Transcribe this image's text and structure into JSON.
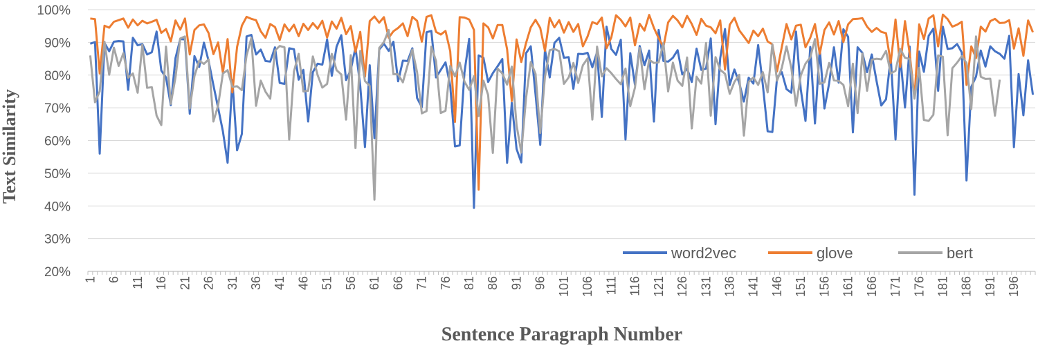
{
  "chart_data": {
    "type": "line",
    "xlabel": "Sentence Paragraph Number",
    "ylabel": "Text Similarity",
    "ylim": [
      20,
      100
    ],
    "yticks": [
      20,
      30,
      40,
      50,
      60,
      70,
      80,
      90,
      100
    ],
    "ytick_suffix": "%",
    "x_count": 200,
    "xticks": [
      1,
      6,
      11,
      16,
      21,
      26,
      31,
      36,
      41,
      46,
      51,
      56,
      61,
      66,
      71,
      76,
      81,
      86,
      91,
      96,
      101,
      106,
      111,
      116,
      121,
      126,
      131,
      136,
      141,
      146,
      151,
      156,
      161,
      166,
      171,
      176,
      181,
      186,
      191,
      196
    ],
    "grid": true,
    "legend": "bottom-right",
    "series": [
      {
        "name": "word2vec",
        "color": "#4472C4",
        "values": [
          89.6,
          90.1,
          56.0,
          89.8,
          87.3,
          90.2,
          90.4,
          90.3,
          75.5,
          91.4,
          89.1,
          89.5,
          86.3,
          87.0,
          93.3,
          81.4,
          79.3,
          70.8,
          85.2,
          91.0,
          90.9,
          68.2,
          85.8,
          82.5,
          89.9,
          84.3,
          76.9,
          70.0,
          62.8,
          53.2,
          78.5,
          57.0,
          62.0,
          91.8,
          92.3,
          86.3,
          87.8,
          84.3,
          84.1,
          88.5,
          77.6,
          77.3,
          88.2,
          87.9,
          78.6,
          81.6,
          65.8,
          80.9,
          83.5,
          83.2,
          90.9,
          79.8,
          88.7,
          92.2,
          78.5,
          81.6,
          88.4,
          76.7,
          58.0,
          83.0,
          60.7,
          87.8,
          89.6,
          87.4,
          90.2,
          78.1,
          84.4,
          84.3,
          88.2,
          73.0,
          70.2,
          93.1,
          93.5,
          79.3,
          81.6,
          83.9,
          76.8,
          58.2,
          58.5,
          80.8,
          91.1,
          39.4,
          86.0,
          85.3,
          77.9,
          80.6,
          82.7,
          84.9,
          53.2,
          71.5,
          57.4,
          53.3,
          86.7,
          88.8,
          74.1,
          58.7,
          87.8,
          79.3,
          89.8,
          91.4,
          85.3,
          85.5,
          75.8,
          86.5,
          86.4,
          86.8,
          82.4,
          87.0,
          67.2,
          94.8,
          88.0,
          86.2,
          90.8,
          60.3,
          86.7,
          77.0,
          88.9,
          83.0,
          87.5,
          65.8,
          93.8,
          84.3,
          84.1,
          85.3,
          87.6,
          80.2,
          82.0,
          77.9,
          88.1,
          81.6,
          82.0,
          91.2,
          65.0,
          85.2,
          94.1,
          77.0,
          81.7,
          77.7,
          71.9,
          79.2,
          77.4,
          89.2,
          76.9,
          62.8,
          62.6,
          79.2,
          80.9,
          75.7,
          74.6,
          93.3,
          75.6,
          66.0,
          88.6,
          65.2,
          88.1,
          69.8,
          77.5,
          88.5,
          77.7,
          94.0,
          91.7,
          62.5,
          88.5,
          86.8,
          80.9,
          86.3,
          78.2,
          70.7,
          72.6,
          85.5,
          60.3,
          85.9,
          70.1,
          88.7,
          43.4,
          87.2,
          81.0,
          92.0,
          94.2,
          75.2,
          94.8,
          88.0,
          88.2,
          89.5,
          86.9,
          47.8,
          76.4,
          79.5,
          87.5,
          82.6,
          88.8,
          87.3,
          86.5,
          85.0,
          92.0,
          58.0,
          80.3,
          67.7,
          84.5,
          74.0
        ]
      },
      {
        "name": "glove",
        "color": "#ED7D31",
        "values": [
          97.3,
          97.1,
          80.5,
          95.1,
          94.5,
          96.3,
          96.8,
          97.3,
          94.5,
          97.0,
          95.2,
          96.6,
          95.8,
          96.3,
          96.9,
          92.9,
          94.1,
          90.3,
          96.7,
          93.9,
          97.3,
          86.3,
          93.8,
          95.2,
          95.5,
          92.8,
          86.4,
          90.0,
          80.7,
          91.0,
          74.7,
          88.6,
          95.1,
          97.8,
          97.2,
          96.8,
          93.4,
          91.4,
          95.6,
          94.7,
          90.7,
          95.5,
          93.4,
          95.4,
          91.9,
          95.7,
          93.8,
          95.9,
          94.2,
          96.6,
          91.5,
          96.4,
          94.2,
          97.5,
          92.5,
          95.0,
          87.1,
          93.2,
          79.5,
          96.5,
          97.9,
          96.0,
          97.7,
          91.4,
          93.4,
          94.4,
          95.8,
          91.9,
          97.8,
          96.6,
          90.2,
          97.8,
          98.3,
          93.2,
          92.4,
          93.5,
          87.3,
          65.7,
          97.7,
          97.6,
          97.0,
          93.8,
          45.0,
          95.8,
          94.6,
          91.2,
          95.3,
          95.3,
          87.9,
          72.1,
          90.9,
          84.0,
          89.8,
          94.6,
          96.9,
          94.4,
          87.4,
          97.5,
          94.6,
          96.8,
          93.0,
          96.2,
          93.2,
          95.6,
          88.8,
          91.8,
          96.2,
          95.6,
          97.6,
          88.2,
          91.5,
          98.3,
          96.9,
          94.9,
          97.6,
          89.1,
          95.7,
          93.6,
          98.4,
          94.4,
          91.3,
          88.6,
          96.1,
          98.1,
          96.7,
          94.6,
          98.1,
          95.6,
          92.3,
          97.2,
          95.1,
          94.6,
          92.8,
          96.7,
          81.7,
          95.4,
          97.5,
          93.7,
          91.8,
          89.8,
          93.6,
          91.9,
          94.2,
          90.3,
          89.4,
          81.1,
          88.6,
          95.6,
          90.9,
          95.1,
          95.4,
          88.5,
          91.4,
          95.6,
          86.5,
          93.8,
          96.1,
          92.4,
          96.5,
          90.1,
          95.5,
          97.1,
          97.2,
          97.4,
          94.8,
          93.2,
          94.4,
          93.2,
          92.8,
          83.7,
          97.0,
          82.5,
          96.5,
          86.5,
          73.1,
          95.5,
          91.0,
          97.3,
          98.3,
          88.8,
          98.5,
          97.1,
          94.8,
          95.4,
          96.3,
          77.0,
          88.8,
          85.2,
          94.8,
          93.3,
          96.5,
          97.2,
          95.9,
          96.0,
          96.8,
          88.1,
          94.3,
          85.9,
          96.7,
          93.1
        ]
      },
      {
        "name": "bert",
        "color": "#A5A5A5",
        "values": [
          86.0,
          71.7,
          75.0,
          90.2,
          80.1,
          88.4,
          82.8,
          86.7,
          79.2,
          80.5,
          74.6,
          89.3,
          76.1,
          76.3,
          67.6,
          64.7,
          88.7,
          71.2,
          79.3,
          91.2,
          91.8,
          69.8,
          79.7,
          84.4,
          83.4,
          84.8,
          65.8,
          70.7,
          80.5,
          81.5,
          76.4,
          76.6,
          75.4,
          86.0,
          91.3,
          70.6,
          78.3,
          74.9,
          72.8,
          87.5,
          88.9,
          88.5,
          60.3,
          81.1,
          86.5,
          75.0,
          75.2,
          85.7,
          80.0,
          76.2,
          77.3,
          86.5,
          81.5,
          80.2,
          66.4,
          86.1,
          57.7,
          87.4,
          78.2,
          76.7,
          41.9,
          88.3,
          90.1,
          93.8,
          80.3,
          80.2,
          77.8,
          83.0,
          87.8,
          80.9,
          68.3,
          69.0,
          88.7,
          84.3,
          68.4,
          69.1,
          82.8,
          79.6,
          83.8,
          78.0,
          75.5,
          79.6,
          67.5,
          78.3,
          73.9,
          56.2,
          82.0,
          80.5,
          77.1,
          82.6,
          64.7,
          56.3,
          73.0,
          84.0,
          80.4,
          62.3,
          79.5,
          87.6,
          88.0,
          87.3,
          77.3,
          79.3,
          83.7,
          77.6,
          83.0,
          85.1,
          66.4,
          88.7,
          79.6,
          82.1,
          80.6,
          78.8,
          77.2,
          82.0,
          70.5,
          76.2,
          88.3,
          75.7,
          84.7,
          83.7,
          83.9,
          89.8,
          75.0,
          83.8,
          78.3,
          76.7,
          85.4,
          63.7,
          79.5,
          77.4,
          89.8,
          67.6,
          85.5,
          81.6,
          80.4,
          74.3,
          77.9,
          80.1,
          61.5,
          77.9,
          79.3,
          77.0,
          80.9,
          74.7,
          89.4,
          78.3,
          82.2,
          88.8,
          82.3,
          70.6,
          79.9,
          83.5,
          85.4,
          91.0,
          77.3,
          77.8,
          83.7,
          78.4,
          78.2,
          77.0,
          70.5,
          83.5,
          68.4,
          86.6,
          75.2,
          84.7,
          85.0,
          84.8,
          87.4,
          80.5,
          81.3,
          88.0,
          85.3,
          84.9,
          72.8,
          82.2,
          66.3,
          66.0,
          67.9,
          86.0,
          85.6,
          61.6,
          82.1,
          83.8,
          85.8,
          83.7,
          69.6,
          91.8,
          79.5,
          78.8,
          78.9,
          67.6,
          78.6
        ]
      }
    ]
  }
}
